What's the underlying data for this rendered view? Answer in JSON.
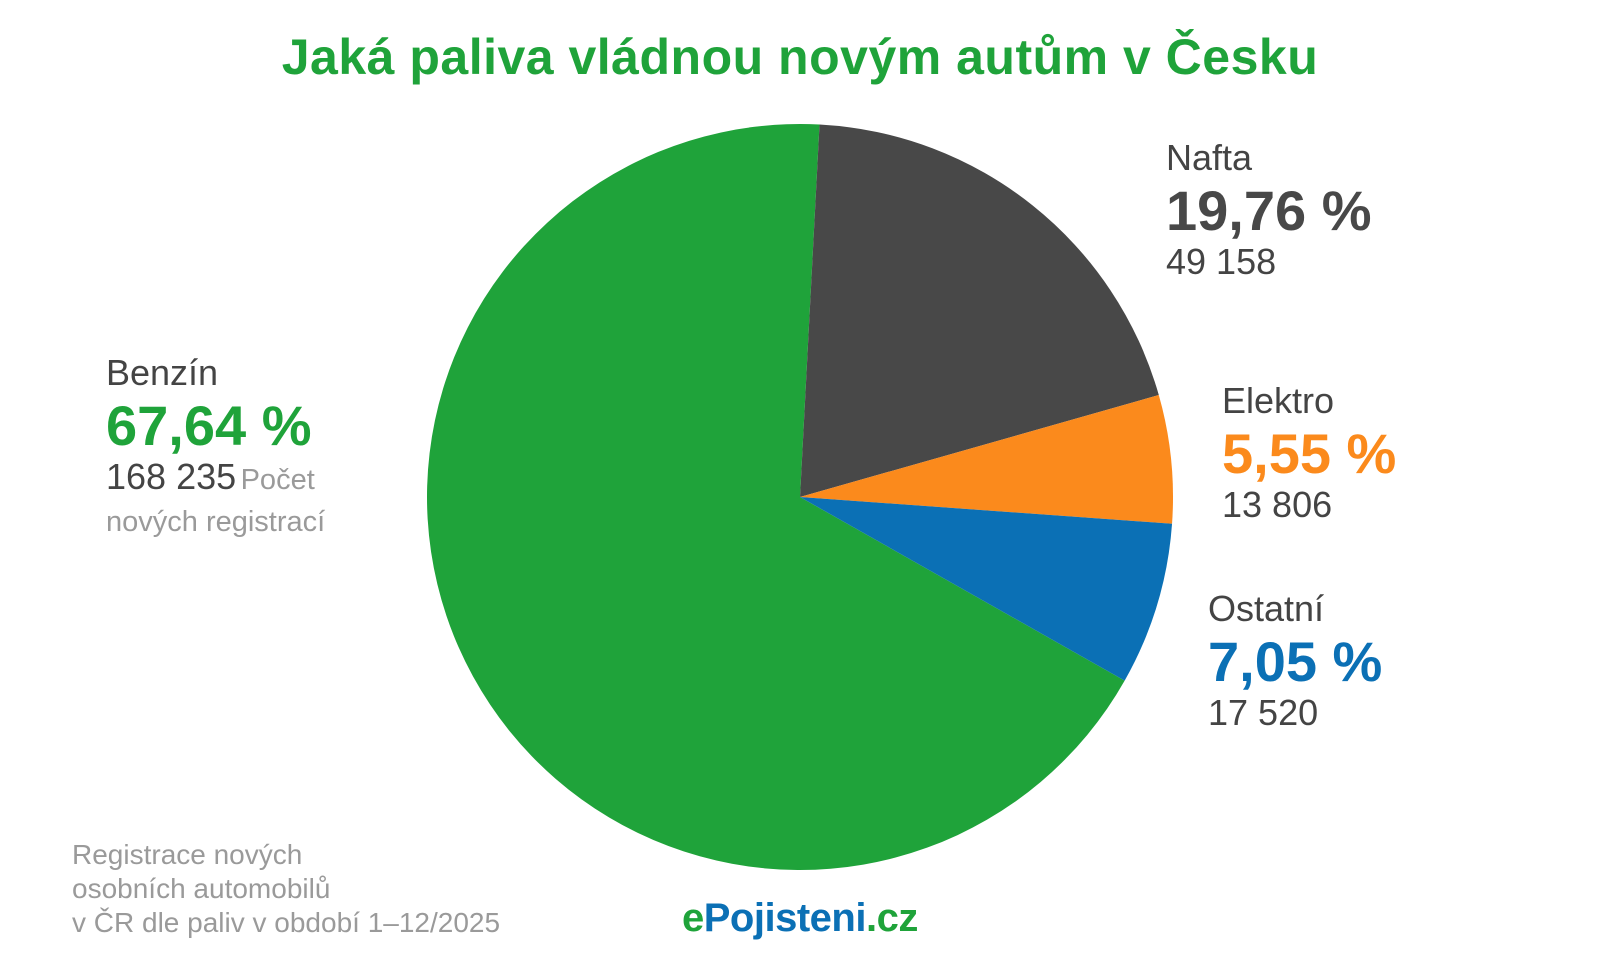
{
  "title": "Jaká paliva vládnou novým autům v Česku",
  "chart_data": {
    "type": "pie",
    "title": "Jaká paliva vládnou novým autům v Česku",
    "slices": [
      {
        "name": "Benzín",
        "percent_label": "67,64 %",
        "value": 67.64,
        "count": "168 235",
        "color": "#1fa33a"
      },
      {
        "name": "Nafta",
        "percent_label": "19,76 %",
        "value": 19.76,
        "count": "49 158",
        "color": "#484848"
      },
      {
        "name": "Elektro",
        "percent_label": "5,55 %",
        "value": 5.55,
        "count": "13 806",
        "color": "#fb8a1c"
      },
      {
        "name": "Ostatní",
        "percent_label": "7,05 %",
        "value": 7.05,
        "count": "17 520",
        "color": "#0b70b5"
      }
    ],
    "count_note_line1": "Počet",
    "count_note_line2": "nových registrací"
  },
  "footnote": {
    "line1": "Registrace nových",
    "line2": "osobních automobilů",
    "line3": "v ČR dle paliv v období 1–12/2025"
  },
  "brand": {
    "part1": "e",
    "part2": "Pojisteni",
    "part3": ".cz"
  }
}
